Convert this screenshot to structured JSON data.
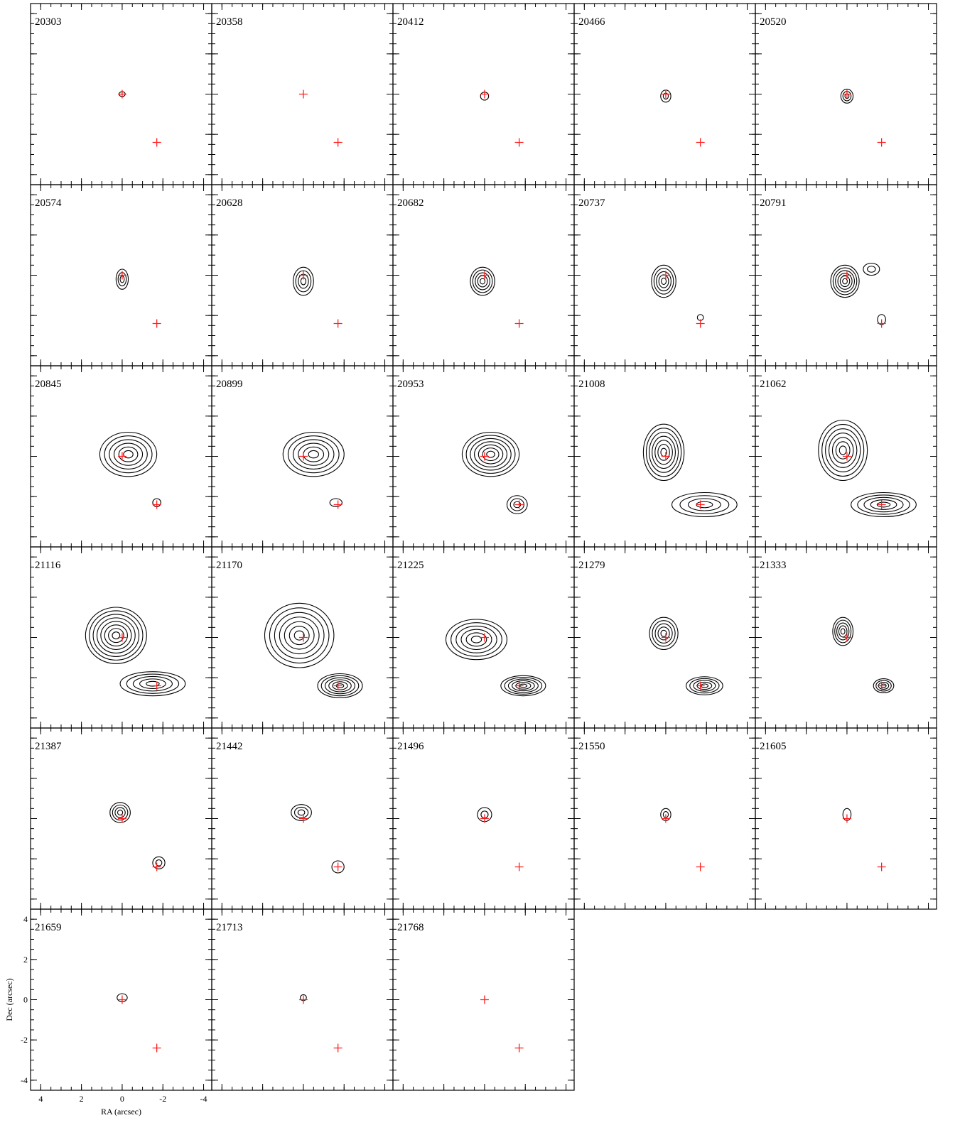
{
  "chart_data": {
    "type": "contour",
    "xlabel": "RA (arcsec)",
    "ylabel": "Dec (arcsec)",
    "xlim": [
      4.5,
      -4.4
    ],
    "ylim": [
      -4.5,
      4.5
    ],
    "xticks": [
      4,
      2,
      0,
      -2,
      -4
    ],
    "yticks": [
      -4,
      -2,
      0,
      2,
      4
    ],
    "xminorticks": [
      4,
      3.5,
      3,
      2.5,
      2,
      1.5,
      1,
      0.5,
      0,
      -0.5,
      -1,
      -1.5,
      -2,
      -2.5,
      -3,
      -3.5,
      -4
    ],
    "yminorticks": [
      -4,
      -3.5,
      -3,
      -2.5,
      -2,
      -1.5,
      -1,
      -0.5,
      0,
      0.5,
      1,
      1.5,
      2,
      2.5,
      3,
      3.5,
      4
    ],
    "contour_color": "#000000",
    "markers": {
      "x": [
        0,
        -1.7
      ],
      "y": [
        0,
        -2.4
      ],
      "color": "#ff2020"
    },
    "panels": [
      {
        "label": "20303",
        "sources": [
          {
            "x": 0,
            "y": 0,
            "rx": 0.15,
            "ry": 0.12,
            "levels": 1
          }
        ]
      },
      {
        "label": "20358",
        "sources": []
      },
      {
        "label": "20412",
        "sources": [
          {
            "x": 0,
            "y": -0.1,
            "rx": 0.2,
            "ry": 0.2,
            "levels": 1
          }
        ]
      },
      {
        "label": "20466",
        "sources": [
          {
            "x": 0,
            "y": -0.1,
            "rx": 0.25,
            "ry": 0.3,
            "levels": 2
          }
        ]
      },
      {
        "label": "20520",
        "sources": [
          {
            "x": 0,
            "y": -0.1,
            "rx": 0.3,
            "ry": 0.35,
            "levels": 3
          }
        ]
      },
      {
        "label": "20574",
        "sources": [
          {
            "x": 0,
            "y": -0.2,
            "rx": 0.3,
            "ry": 0.5,
            "levels": 3
          }
        ]
      },
      {
        "label": "20628",
        "sources": [
          {
            "x": 0,
            "y": -0.3,
            "rx": 0.5,
            "ry": 0.7,
            "levels": 4
          }
        ]
      },
      {
        "label": "20682",
        "sources": [
          {
            "x": 0.1,
            "y": -0.3,
            "rx": 0.6,
            "ry": 0.7,
            "levels": 5
          }
        ]
      },
      {
        "label": "20737",
        "sources": [
          {
            "x": 0.1,
            "y": -0.3,
            "rx": 0.6,
            "ry": 0.8,
            "levels": 5
          },
          {
            "x": -1.7,
            "y": -2.1,
            "rx": 0.15,
            "ry": 0.15,
            "levels": 1
          }
        ]
      },
      {
        "label": "20791",
        "sources": [
          {
            "x": 0.1,
            "y": -0.3,
            "rx": 0.7,
            "ry": 0.8,
            "levels": 6
          },
          {
            "x": -1.2,
            "y": 0.3,
            "rx": 0.4,
            "ry": 0.3,
            "levels": 2
          },
          {
            "x": -1.7,
            "y": -2.2,
            "rx": 0.2,
            "ry": 0.25,
            "levels": 1
          }
        ]
      },
      {
        "label": "20845",
        "sources": [
          {
            "x": -0.3,
            "y": 0.1,
            "rx": 1.4,
            "ry": 1.1,
            "levels": 6
          },
          {
            "x": -1.7,
            "y": -2.3,
            "rx": 0.2,
            "ry": 0.2,
            "levels": 1
          }
        ]
      },
      {
        "label": "20899",
        "sources": [
          {
            "x": -0.5,
            "y": 0.1,
            "rx": 1.5,
            "ry": 1.1,
            "levels": 6
          },
          {
            "x": -1.6,
            "y": -2.3,
            "rx": 0.3,
            "ry": 0.2,
            "levels": 1
          }
        ]
      },
      {
        "label": "20953",
        "sources": [
          {
            "x": -0.3,
            "y": 0.1,
            "rx": 1.4,
            "ry": 1.1,
            "levels": 7
          },
          {
            "x": -1.6,
            "y": -2.4,
            "rx": 0.5,
            "ry": 0.45,
            "levels": 3
          }
        ]
      },
      {
        "label": "21008",
        "sources": [
          {
            "x": 0.1,
            "y": 0.2,
            "rx": 1,
            "ry": 1.4,
            "levels": 7
          },
          {
            "x": -1.9,
            "y": -2.4,
            "rx": 1.6,
            "ry": 0.6,
            "levels": 4
          }
        ]
      },
      {
        "label": "21062",
        "sources": [
          {
            "x": 0.2,
            "y": 0.3,
            "rx": 1.2,
            "ry": 1.5,
            "levels": 7
          },
          {
            "x": -1.8,
            "y": -2.4,
            "rx": 1.6,
            "ry": 0.6,
            "levels": 5
          }
        ]
      },
      {
        "label": "21116",
        "sources": [
          {
            "x": 0.3,
            "y": 0.1,
            "rx": 1.5,
            "ry": 1.4,
            "levels": 8
          },
          {
            "x": -1.5,
            "y": -2.3,
            "rx": 1.6,
            "ry": 0.6,
            "levels": 5
          }
        ]
      },
      {
        "label": "21170",
        "sources": [
          {
            "x": 0.2,
            "y": 0.1,
            "rx": 1.7,
            "ry": 1.6,
            "levels": 7
          },
          {
            "x": -1.8,
            "y": -2.4,
            "rx": 1.1,
            "ry": 0.6,
            "levels": 6
          }
        ]
      },
      {
        "label": "21225",
        "sources": [
          {
            "x": 0.4,
            "y": -0.1,
            "rx": 1.5,
            "ry": 1,
            "levels": 6
          },
          {
            "x": -1.9,
            "y": -2.4,
            "rx": 1.1,
            "ry": 0.5,
            "levels": 6
          }
        ]
      },
      {
        "label": "21279",
        "sources": [
          {
            "x": 0.1,
            "y": 0.2,
            "rx": 0.7,
            "ry": 0.8,
            "levels": 5
          },
          {
            "x": -1.9,
            "y": -2.4,
            "rx": 0.9,
            "ry": 0.45,
            "levels": 5
          }
        ]
      },
      {
        "label": "21333",
        "sources": [
          {
            "x": 0.2,
            "y": 0.3,
            "rx": 0.5,
            "ry": 0.7,
            "levels": 5
          },
          {
            "x": -1.8,
            "y": -2.4,
            "rx": 0.5,
            "ry": 0.35,
            "levels": 4
          }
        ]
      },
      {
        "label": "21387",
        "sources": [
          {
            "x": 0.1,
            "y": 0.3,
            "rx": 0.5,
            "ry": 0.5,
            "levels": 4
          },
          {
            "x": -1.8,
            "y": -2.2,
            "rx": 0.3,
            "ry": 0.3,
            "levels": 2
          }
        ]
      },
      {
        "label": "21442",
        "sources": [
          {
            "x": 0.1,
            "y": 0.3,
            "rx": 0.5,
            "ry": 0.4,
            "levels": 3
          },
          {
            "x": -1.7,
            "y": -2.4,
            "rx": 0.3,
            "ry": 0.3,
            "levels": 1
          }
        ]
      },
      {
        "label": "21496",
        "sources": [
          {
            "x": 0,
            "y": 0.2,
            "rx": 0.35,
            "ry": 0.35,
            "levels": 2
          }
        ]
      },
      {
        "label": "21550",
        "sources": [
          {
            "x": 0,
            "y": 0.2,
            "rx": 0.25,
            "ry": 0.3,
            "levels": 2
          }
        ]
      },
      {
        "label": "21605",
        "sources": [
          {
            "x": 0,
            "y": 0.2,
            "rx": 0.2,
            "ry": 0.3,
            "levels": 1
          }
        ]
      },
      {
        "label": "21659",
        "sources": [
          {
            "x": 0,
            "y": 0.1,
            "rx": 0.25,
            "ry": 0.2,
            "levels": 1
          }
        ]
      },
      {
        "label": "21713",
        "sources": [
          {
            "x": 0,
            "y": 0.1,
            "rx": 0.15,
            "ry": 0.15,
            "levels": 1
          }
        ]
      },
      {
        "label": "21768",
        "sources": []
      }
    ]
  }
}
